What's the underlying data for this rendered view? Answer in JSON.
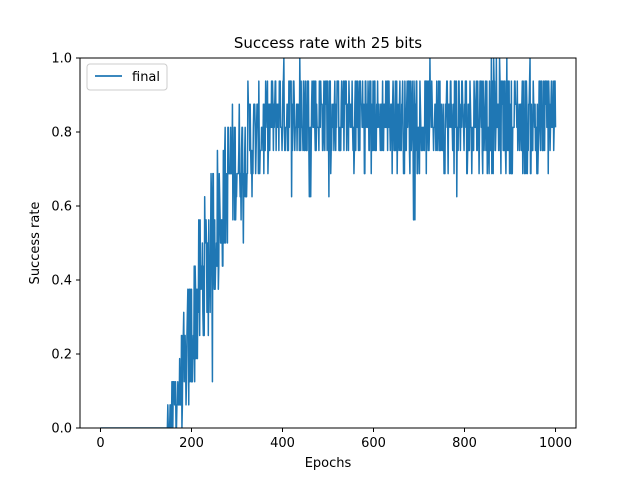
{
  "chart_data": {
    "type": "line",
    "title": "Success rate with 25 bits",
    "xlabel": "Epochs",
    "ylabel": "Success rate",
    "xlim": [
      -45,
      1045
    ],
    "ylim": [
      0.0,
      1.0
    ],
    "x_ticks": [
      0,
      200,
      400,
      600,
      800,
      1000
    ],
    "y_ticks": [
      0.0,
      0.2,
      0.4,
      0.6,
      0.8,
      1.0
    ],
    "legend_position": "upper-left",
    "grid": false,
    "series": [
      {
        "name": "final",
        "color": "#1f77b4",
        "x_start": 0,
        "x_step": 1,
        "levels": [
          0.0,
          0.0625,
          0.125,
          0.1875,
          0.25,
          0.3125,
          0.375,
          0.4375,
          0.5,
          0.5625,
          0.625,
          0.6875,
          0.75,
          0.8125,
          0.875,
          0.9375,
          1.0
        ],
        "description": "success rate per epoch; values are multiples of 1/16",
        "anchors": [
          [
            0,
            0.0
          ],
          [
            140,
            0.0
          ],
          [
            160,
            0.06
          ],
          [
            180,
            0.12
          ],
          [
            200,
            0.25
          ],
          [
            220,
            0.38
          ],
          [
            240,
            0.5
          ],
          [
            260,
            0.58
          ],
          [
            280,
            0.66
          ],
          [
            300,
            0.72
          ],
          [
            320,
            0.76
          ],
          [
            340,
            0.79
          ],
          [
            360,
            0.81
          ],
          [
            380,
            0.83
          ],
          [
            400,
            0.85
          ],
          [
            450,
            0.86
          ],
          [
            500,
            0.85
          ],
          [
            600,
            0.84
          ],
          [
            700,
            0.84
          ],
          [
            800,
            0.84
          ],
          [
            900,
            0.84
          ],
          [
            1000,
            0.84
          ]
        ],
        "noise": [
          [
            0,
            0.0
          ],
          [
            140,
            0.0
          ],
          [
            160,
            0.05
          ],
          [
            200,
            0.12
          ],
          [
            240,
            0.13
          ],
          [
            300,
            0.1
          ],
          [
            360,
            0.08
          ],
          [
            400,
            0.08
          ],
          [
            600,
            0.08
          ],
          [
            1000,
            0.09
          ]
        ]
      }
    ]
  }
}
